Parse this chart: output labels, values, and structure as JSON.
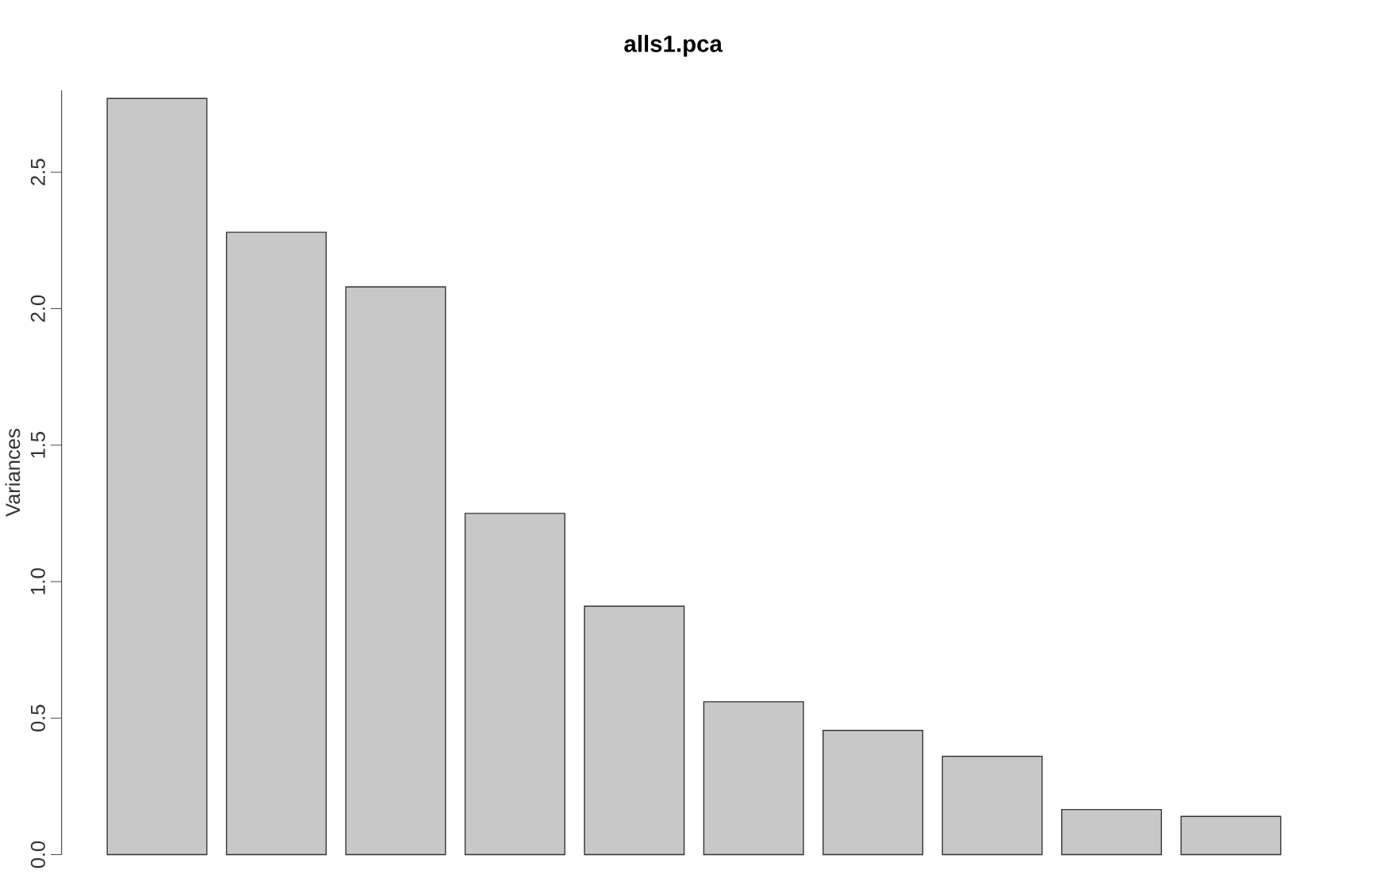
{
  "chart_data": {
    "type": "bar",
    "title": "alls1.pca",
    "ylabel": "Variances",
    "categories": [
      null,
      null,
      null,
      null,
      null,
      null,
      null,
      null,
      null,
      null
    ],
    "values": [
      2.77,
      2.28,
      2.08,
      1.25,
      0.91,
      0.56,
      0.455,
      0.36,
      0.165,
      0.14
    ],
    "color": "#c8c8c8",
    "ylim": [
      0,
      2.8
    ],
    "yticks": [
      {
        "value": 0,
        "label": "0.0"
      },
      {
        "value": 0.5,
        "label": "0.5"
      },
      {
        "value": 1,
        "label": "1.0"
      },
      {
        "value": 1.5,
        "label": "1.5"
      },
      {
        "value": 2,
        "label": "2.0"
      },
      {
        "value": 2.5,
        "label": "2.5"
      }
    ]
  }
}
